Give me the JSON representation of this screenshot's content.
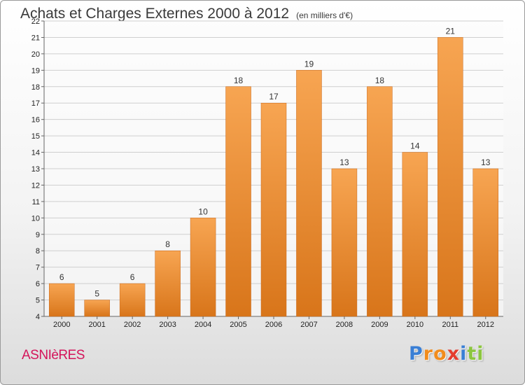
{
  "header": {
    "title": "Achats et Charges Externes 2000 à 2012",
    "subtitle": "(en milliers d'€)"
  },
  "footer": {
    "commune": "ASNIèRES",
    "logo_letters": [
      "P",
      "r",
      "o",
      "x",
      "i",
      "t",
      "i"
    ],
    "logo_colors": [
      "#3a7fd5",
      "#f28c1c",
      "#f28c1c",
      "#e43d2f",
      "#3a7fd5",
      "#8cc63f",
      "#8cc63f"
    ]
  },
  "colors": {
    "bar_light": "#f7a552",
    "bar_dark": "#d8751a",
    "grid": "#cfcfcf"
  },
  "chart_data": {
    "type": "bar",
    "title": "Achats et Charges Externes 2000 à 2012",
    "subtitle": "(en milliers d'€)",
    "xlabel": "",
    "ylabel": "",
    "categories": [
      "2000",
      "2001",
      "2002",
      "2003",
      "2004",
      "2005",
      "2006",
      "2007",
      "2008",
      "2009",
      "2010",
      "2011",
      "2012"
    ],
    "values": [
      6,
      5,
      6,
      8,
      10,
      18,
      17,
      19,
      13,
      18,
      14,
      21,
      13
    ],
    "ylim": [
      4,
      22
    ],
    "yticks": [
      4,
      5,
      6,
      7,
      8,
      9,
      10,
      11,
      12,
      13,
      14,
      15,
      16,
      17,
      18,
      19,
      20,
      21,
      22
    ],
    "grid": true,
    "legend": "none"
  }
}
